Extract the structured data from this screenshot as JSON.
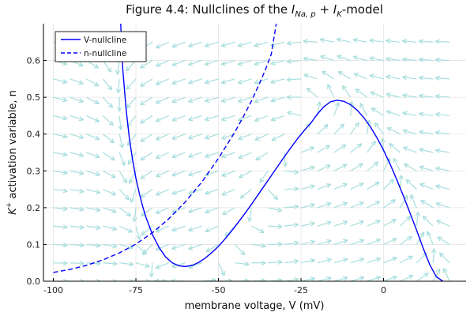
{
  "chart_data": {
    "type": "line",
    "title": "Figure 4.4: Nullclines of the I_{Na,p} + I_K-model",
    "title_parts": {
      "prefix": "Figure 4.4: Nullclines of the ",
      "term1": "I",
      "term1_sub": "Na, p",
      "plus": " + ",
      "term2": "I",
      "term2_sub": "K",
      "suffix": "-model"
    },
    "xlabel": "membrane voltage, V (mV)",
    "ylabel_parts": {
      "base": "K",
      "sup": "+",
      "rest": "  activation variable, n"
    },
    "xlim": [
      -103,
      25
    ],
    "ylim": [
      0,
      0.7
    ],
    "x_ticks": [
      -100,
      -75,
      -50,
      -25,
      0
    ],
    "x_tick_labels": [
      "-100",
      "-75",
      "-50",
      "-25",
      "0"
    ],
    "y_ticks": [
      0.0,
      0.1,
      0.2,
      0.3,
      0.4,
      0.5,
      0.6
    ],
    "y_tick_labels": [
      "0.0",
      "0.1",
      "0.2",
      "0.3",
      "0.4",
      "0.5",
      "0.6"
    ],
    "grid": true,
    "legend_position": "top-left",
    "series": [
      {
        "name": "V-nullcline",
        "style": "solid",
        "color": "#0000ff",
        "x": [
          -79.6,
          -79,
          -78,
          -77,
          -76,
          -75,
          -74,
          -73,
          -72,
          -70,
          -68,
          -66,
          -64,
          -62,
          -60,
          -58,
          -56,
          -54,
          -52,
          -50,
          -48,
          -46,
          -44,
          -42,
          -40,
          -38,
          -36,
          -34,
          -32,
          -30,
          -28,
          -26,
          -24,
          -22,
          -20,
          -18,
          -16,
          -14,
          -12,
          -10,
          -8,
          -6,
          -4,
          -2,
          0,
          2,
          4,
          6,
          8,
          10,
          12,
          14,
          16,
          18
        ],
        "y": [
          0.7,
          0.58,
          0.47,
          0.39,
          0.33,
          0.28,
          0.24,
          0.205,
          0.175,
          0.127,
          0.092,
          0.066,
          0.05,
          0.042,
          0.04,
          0.043,
          0.051,
          0.063,
          0.078,
          0.095,
          0.115,
          0.137,
          0.16,
          0.184,
          0.209,
          0.235,
          0.261,
          0.287,
          0.313,
          0.339,
          0.364,
          0.388,
          0.41,
          0.43,
          0.455,
          0.475,
          0.488,
          0.492,
          0.489,
          0.48,
          0.465,
          0.445,
          0.42,
          0.39,
          0.356,
          0.318,
          0.276,
          0.232,
          0.186,
          0.139,
          0.09,
          0.045,
          0.012,
          0.0
        ]
      },
      {
        "name": "n-nullcline",
        "style": "dashed",
        "color": "#0000ff",
        "x": [
          -100,
          -95,
          -90,
          -85,
          -80,
          -75,
          -70,
          -65,
          -60,
          -55,
          -50,
          -45,
          -42,
          -40,
          -38,
          -36,
          -34,
          -32.5
        ],
        "y": [
          0.024,
          0.032,
          0.043,
          0.058,
          0.077,
          0.101,
          0.132,
          0.17,
          0.216,
          0.27,
          0.334,
          0.406,
          0.455,
          0.49,
          0.529,
          0.57,
          0.617,
          0.7
        ]
      }
    ],
    "vector_field": {
      "description": "direction field arrows",
      "color": "#a9dede",
      "x_grid": [
        -100,
        -95,
        -90,
        -85,
        -80,
        -75,
        -70,
        -65,
        -60,
        -55,
        -50,
        -45,
        -40,
        -35,
        -30,
        -25,
        -20,
        -15,
        -10,
        -5,
        0,
        5,
        10,
        15,
        20
      ],
      "y_grid": [
        0.0,
        0.05,
        0.1,
        0.15,
        0.2,
        0.25,
        0.3,
        0.35,
        0.4,
        0.45,
        0.5,
        0.55,
        0.6,
        0.65
      ]
    }
  }
}
